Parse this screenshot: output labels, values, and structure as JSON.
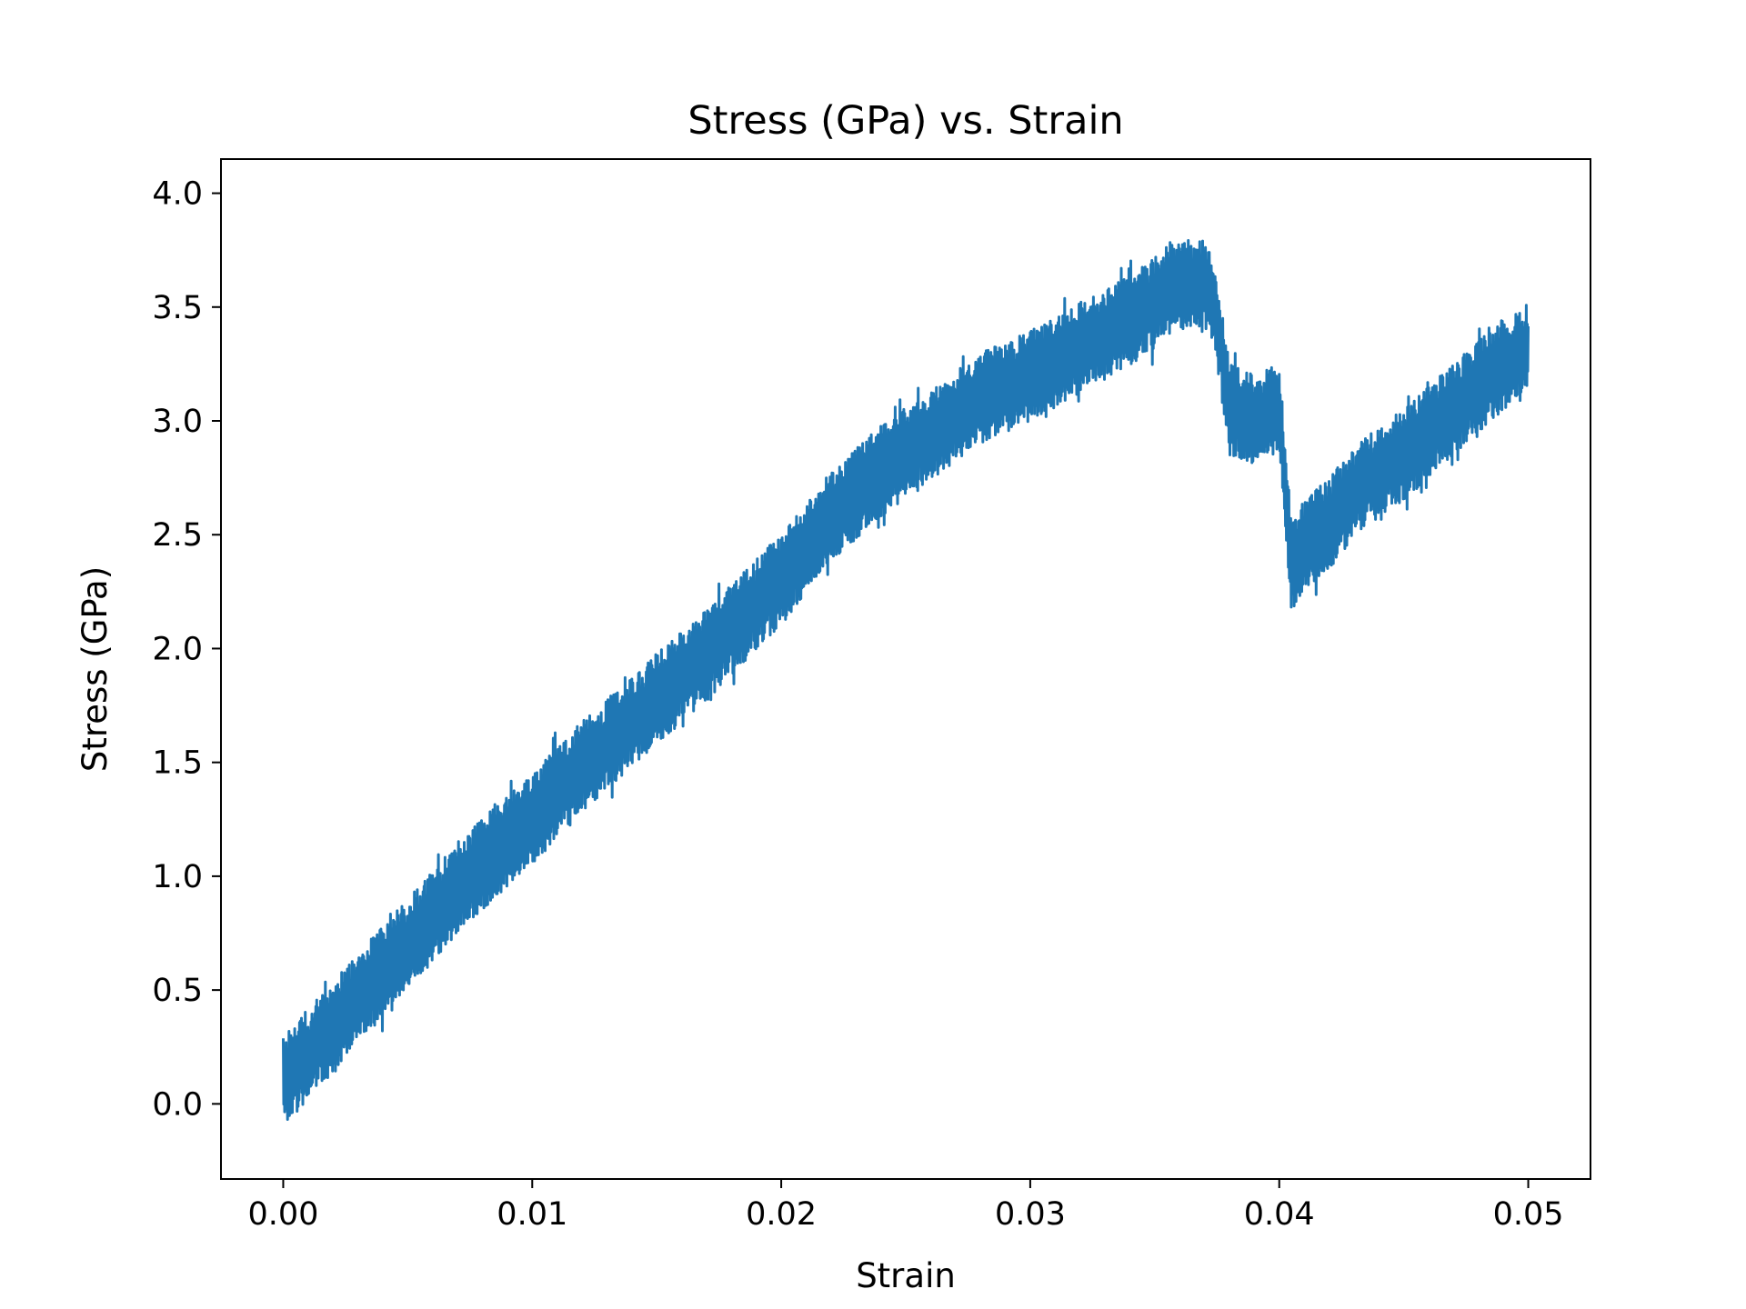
{
  "chart_data": {
    "type": "line",
    "title": "Stress (GPa) vs. Strain",
    "xlabel": "Strain",
    "ylabel": "Stress (GPa)",
    "xlim": [
      -0.0025,
      0.0525
    ],
    "ylim": [
      -0.33,
      4.15
    ],
    "xticks": [
      0.0,
      0.01,
      0.02,
      0.03,
      0.04,
      0.05
    ],
    "xtick_labels": [
      "0.00",
      "0.01",
      "0.02",
      "0.03",
      "0.04",
      "0.05"
    ],
    "yticks": [
      0.0,
      0.5,
      1.0,
      1.5,
      2.0,
      2.5,
      3.0,
      3.5,
      4.0
    ],
    "ytick_labels": [
      "0.0",
      "0.5",
      "1.0",
      "1.5",
      "2.0",
      "2.5",
      "3.0",
      "3.5",
      "4.0"
    ],
    "grid": false,
    "legend": "none",
    "series": [
      {
        "color": "#1f77b4",
        "noise_amplitude": 0.2,
        "x": [
          0.0,
          0.001,
          0.002,
          0.003,
          0.004,
          0.005,
          0.006,
          0.007,
          0.008,
          0.009,
          0.01,
          0.011,
          0.012,
          0.013,
          0.014,
          0.015,
          0.016,
          0.017,
          0.018,
          0.019,
          0.02,
          0.021,
          0.022,
          0.023,
          0.024,
          0.025,
          0.026,
          0.027,
          0.028,
          0.029,
          0.03,
          0.031,
          0.032,
          0.033,
          0.034,
          0.035,
          0.0355,
          0.036,
          0.037,
          0.0375,
          0.038,
          0.039,
          0.04,
          0.0405,
          0.041,
          0.042,
          0.043,
          0.044,
          0.045,
          0.046,
          0.047,
          0.048,
          0.049,
          0.05
        ],
        "y": [
          0.1,
          0.22,
          0.34,
          0.46,
          0.58,
          0.7,
          0.82,
          0.95,
          1.05,
          1.15,
          1.25,
          1.37,
          1.48,
          1.58,
          1.67,
          1.78,
          1.87,
          1.97,
          2.08,
          2.2,
          2.3,
          2.45,
          2.58,
          2.68,
          2.78,
          2.86,
          2.94,
          3.02,
          3.1,
          3.15,
          3.2,
          3.26,
          3.32,
          3.38,
          3.44,
          3.52,
          3.58,
          3.6,
          3.6,
          3.45,
          3.05,
          3.0,
          3.05,
          2.35,
          2.45,
          2.55,
          2.68,
          2.78,
          2.85,
          2.95,
          3.05,
          3.15,
          3.25,
          3.32
        ]
      }
    ]
  }
}
